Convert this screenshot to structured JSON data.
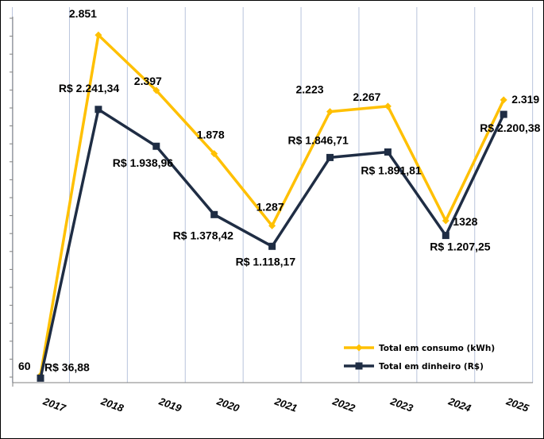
{
  "chart_data": {
    "type": "line",
    "title": "",
    "xlabel": "",
    "ylabel": "",
    "categories": [
      "2017",
      "2018",
      "2019",
      "2020",
      "2021",
      "2022",
      "2023",
      "2024",
      "2025"
    ],
    "ylim": [
      0,
      3080
    ],
    "grid": true,
    "legend_position": "bottom-right",
    "series": [
      {
        "name": "Total em consumo (kWh)",
        "color": "#FFC000",
        "marker": "diamond",
        "values": [
          60,
          2851,
          2397,
          1878,
          1287,
          2223,
          2267,
          1328,
          2319
        ],
        "labels": [
          "60",
          "2.851",
          "2.397",
          "1.878",
          "1.287",
          "2.223",
          "2.267",
          "1328",
          "2.319"
        ]
      },
      {
        "name": "Total em dinheiro (R$)",
        "color": "#1F2D44",
        "marker": "square",
        "values": [
          36.88,
          2241.34,
          1938.96,
          1378.42,
          1118.17,
          1846.71,
          1891.81,
          1207.25,
          2200.38
        ],
        "labels": [
          "R$ 36,88",
          "R$ 2.241,34",
          "R$ 1.938,96",
          "R$ 1.378,42",
          "R$ 1.118,17",
          "R$ 1.846,71",
          "R$ 1.891,81",
          "R$ 1.207,25",
          "R$ 2.200,38"
        ]
      }
    ]
  }
}
